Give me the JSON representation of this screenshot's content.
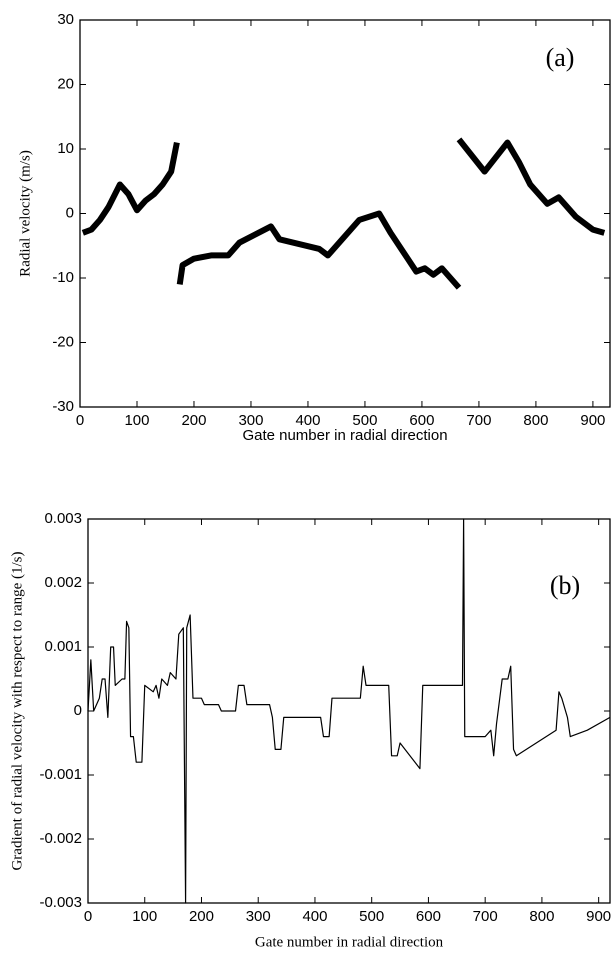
{
  "chart_data": [
    {
      "type": "line",
      "annotation": "(a)",
      "xlabel": "Gate number in radial direction",
      "ylabel": "Radial velocity  (m/s)",
      "color": "#000000",
      "x": [
        5,
        20,
        35,
        50,
        70,
        85,
        100,
        115,
        130,
        145,
        160,
        170,
        null,
        175,
        180,
        200,
        230,
        260,
        280,
        335,
        350,
        420,
        435,
        490,
        525,
        545,
        575,
        590,
        605,
        620,
        635,
        665,
        null,
        665,
        710,
        750,
        770,
        790,
        820,
        840,
        870,
        900,
        920
      ],
      "values": [
        -3,
        -2.5,
        -1,
        1,
        4.5,
        3,
        0.5,
        2,
        3,
        4.5,
        6.5,
        11,
        null,
        -11,
        -8,
        -7,
        -6.5,
        -6.5,
        -4.5,
        -2,
        -4,
        -5.5,
        -6.5,
        -1,
        0,
        -3,
        -7,
        -9,
        -8.5,
        -9.5,
        -8.5,
        -11.5,
        null,
        11.5,
        6.5,
        11,
        8,
        4.5,
        1.5,
        2.5,
        -0.5,
        -2.5,
        -3
      ],
      "xlim": [
        0,
        930
      ],
      "xticks": [
        0,
        100,
        200,
        300,
        400,
        500,
        600,
        700,
        800,
        900
      ],
      "ylim": [
        -30,
        30
      ],
      "yticks": [
        -30,
        -20,
        -10,
        0,
        10,
        20,
        30
      ]
    },
    {
      "type": "line",
      "annotation": "(b)",
      "xlabel": "Gate number in  radial direction",
      "ylabel": "Gradient of radial velocity with respect to range (1/s)",
      "color": "#000000",
      "x": [
        0,
        5,
        10,
        20,
        25,
        30,
        35,
        40,
        45,
        48,
        60,
        65,
        68,
        72,
        75,
        80,
        85,
        95,
        100,
        115,
        120,
        125,
        130,
        140,
        145,
        155,
        160,
        168,
        172,
        174,
        177,
        180,
        185,
        200,
        205,
        230,
        235,
        260,
        265,
        275,
        280,
        320,
        325,
        330,
        340,
        345,
        410,
        415,
        425,
        430,
        480,
        485,
        490,
        530,
        535,
        545,
        550,
        585,
        590,
        660,
        662,
        664,
        700,
        710,
        715,
        720,
        730,
        740,
        745,
        750,
        755,
        825,
        830,
        835,
        845,
        850,
        880,
        920
      ],
      "values": [
        0,
        0.0008,
        0,
        0.0002,
        0.0005,
        0.0005,
        -0.0001,
        0.001,
        0.001,
        0.0004,
        0.0005,
        0.0005,
        0.0014,
        0.0013,
        -0.0004,
        -0.0004,
        -0.0008,
        -0.0008,
        0.0004,
        0.0003,
        0.0004,
        0.0002,
        0.0005,
        0.0004,
        0.0006,
        0.0005,
        0.0012,
        0.0013,
        -0.003,
        0.0013,
        0.0014,
        0.0015,
        0.0002,
        0.0002,
        0.0001,
        0.0001,
        0,
        0,
        0.0004,
        0.0004,
        0.0001,
        0.0001,
        -0.0001,
        -0.0006,
        -0.0006,
        -0.0001,
        -0.0001,
        -0.0004,
        -0.0004,
        0.0002,
        0.0002,
        0.0007,
        0.0004,
        0.0004,
        -0.0007,
        -0.0007,
        -0.0005,
        -0.0009,
        0.0004,
        0.0004,
        0.003,
        -0.0004,
        -0.0004,
        -0.0003,
        -0.0007,
        -0.0002,
        0.0005,
        0.0005,
        0.0007,
        -0.0006,
        -0.0007,
        -0.0003,
        0.0003,
        0.0002,
        -0.0001,
        -0.0004,
        -0.0003,
        -0.0001
      ],
      "xlim": [
        0,
        920
      ],
      "xticks": [
        0,
        100,
        200,
        300,
        400,
        500,
        600,
        700,
        800,
        900
      ],
      "ylim": [
        -0.003,
        0.003
      ],
      "yticks": [
        -0.003,
        -0.002,
        -0.001,
        0,
        0.001,
        0.002,
        0.003
      ]
    }
  ]
}
